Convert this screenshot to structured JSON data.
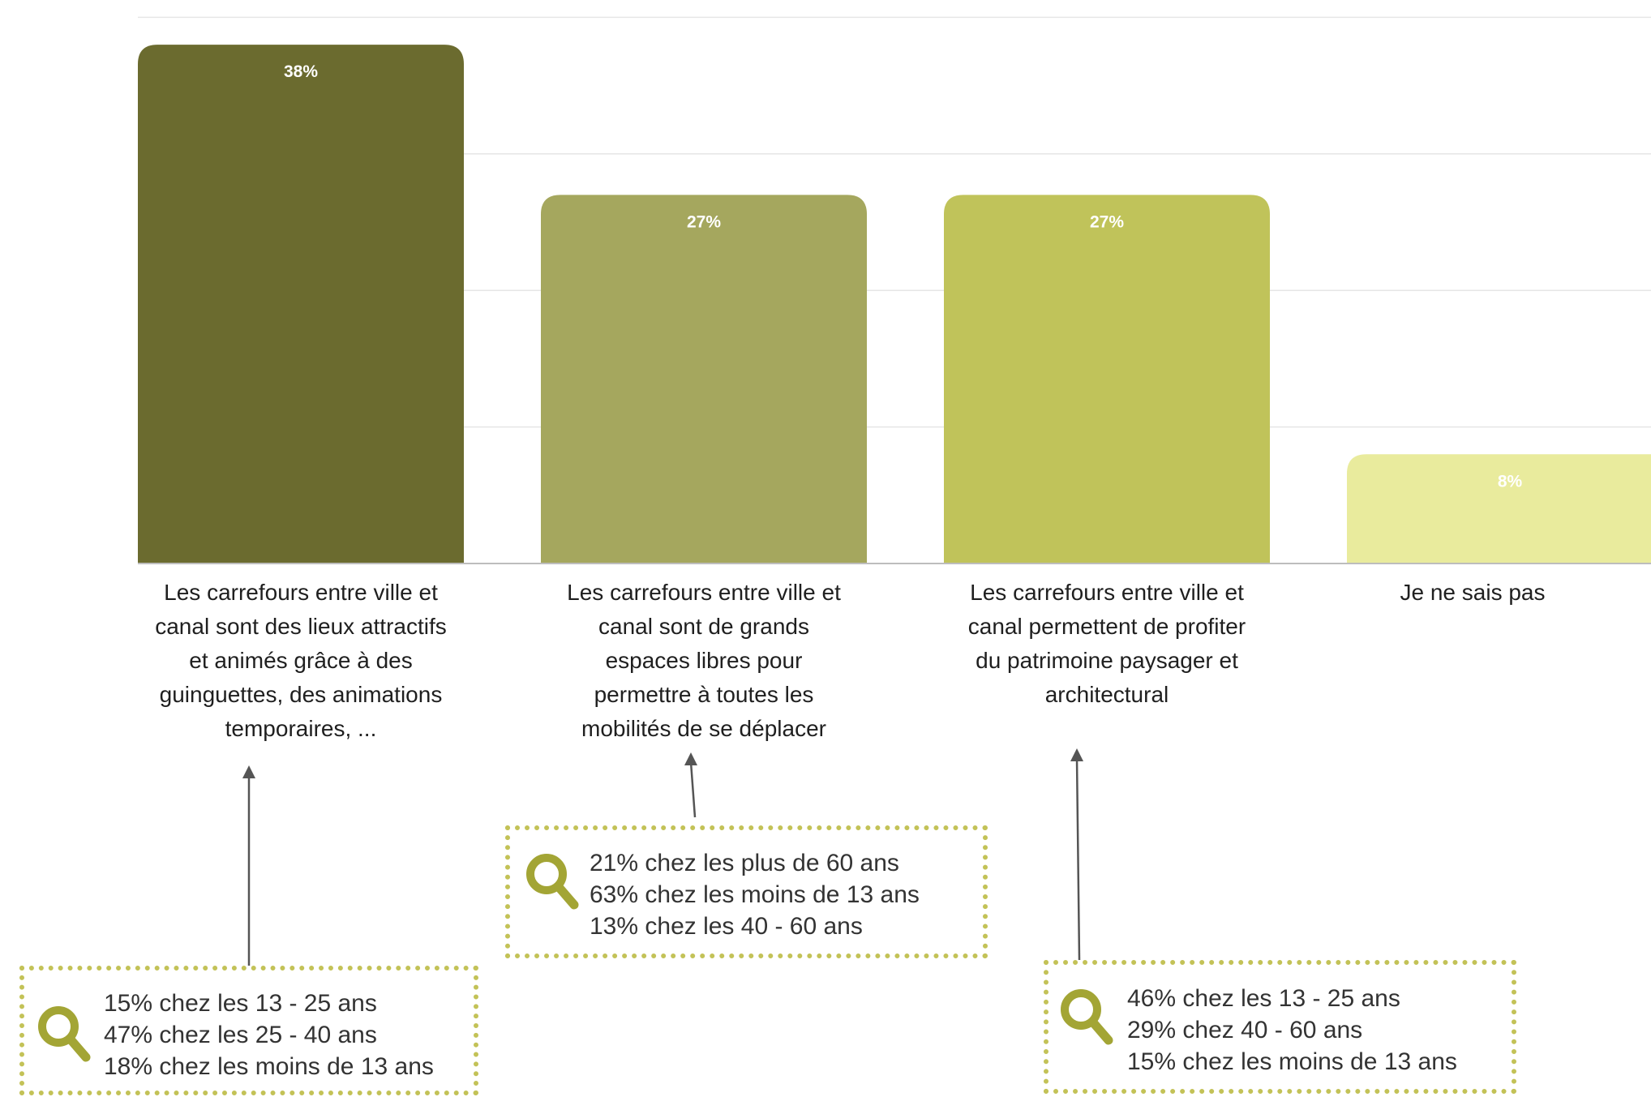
{
  "chart_data": {
    "type": "bar",
    "categories": [
      "Les carrefours entre ville et canal sont des lieux attractifs et animés grâce à des guinguettes, des animations temporaires, ...",
      "Les carrefours entre ville et canal sont de grands espaces libres pour permettre à toutes les mobilités de se déplacer",
      "Les carrefours entre ville et canal permettent de profiter du patrimoine paysager et architectural",
      "Je ne sais pas"
    ],
    "category_label_lines": [
      [
        "Les carrefours entre ville et",
        "canal sont des lieux attractifs",
        "et animés grâce à des",
        "guinguettes, des animations",
        "temporaires, ..."
      ],
      [
        "Les carrefours entre ville et",
        "canal sont de grands",
        "espaces libres pour",
        "permettre à toutes les",
        "mobilités de se déplacer"
      ],
      [
        "Les carrefours entre ville et",
        "canal permettent de profiter",
        "du patrimoine paysager et",
        "architectural"
      ],
      [
        "Je ne sais pas"
      ]
    ],
    "values": [
      38,
      27,
      27,
      8
    ],
    "value_labels": [
      "38%",
      "27%",
      "27%",
      "8%"
    ],
    "unit": "%",
    "ylim": [
      0,
      40
    ],
    "grid": true,
    "legend": "none",
    "title": "",
    "xlabel": "",
    "ylabel": ""
  },
  "colors": {
    "bars": [
      "#6b6b2f",
      "#a5a75e",
      "#c0c35a",
      "#e9eb9d"
    ],
    "value_label": "#ffffff",
    "grid": "#e6e6e6",
    "axis": "#bdbdbd",
    "note_border": "#c3c257",
    "note_icon": "#a3a535",
    "arrow": "#555555",
    "text": "#1f1f1f",
    "note_text": "#333333"
  },
  "annotations": [
    {
      "icon": "magnifier-icon",
      "target_bar": 0,
      "lines": [
        "15% chez les 13 - 25 ans",
        "47% chez les 25 - 40 ans",
        "18% chez les moins de 13 ans"
      ]
    },
    {
      "icon": "magnifier-icon",
      "target_bar": 1,
      "lines": [
        "21% chez les plus de 60 ans",
        "63% chez les moins de 13 ans",
        "13% chez les 40 - 60 ans"
      ]
    },
    {
      "icon": "magnifier-icon",
      "target_bar": 2,
      "lines": [
        "46% chez les 13 - 25 ans",
        "29% chez 40 - 60 ans",
        "15% chez les moins de 13 ans"
      ]
    }
  ]
}
